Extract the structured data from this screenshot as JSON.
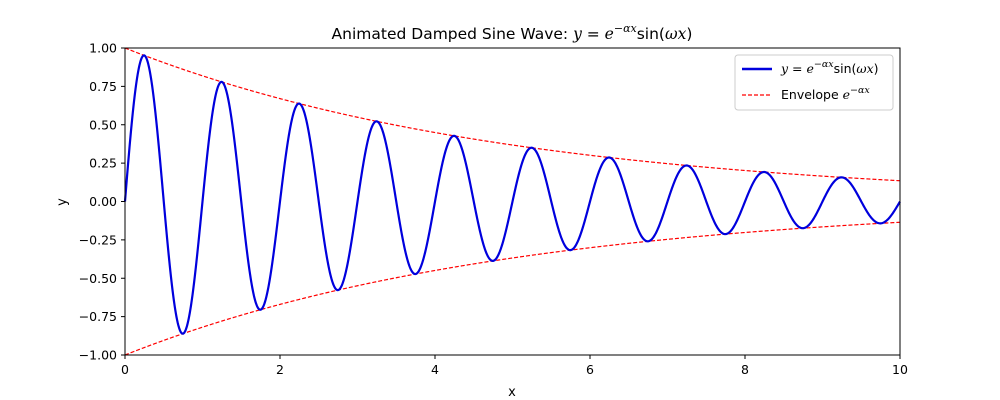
{
  "chart_data": {
    "type": "line",
    "title_prefix": "Animated Damped Sine Wave: ",
    "title_math": "y = e^(−αx) sin(ωx)",
    "xlabel": "x",
    "ylabel": "y",
    "xlim": [
      0,
      10
    ],
    "ylim": [
      -1.0,
      1.0
    ],
    "x_ticks": [
      0,
      2,
      4,
      6,
      8,
      10
    ],
    "x_tick_labels": [
      "0",
      "2",
      "4",
      "6",
      "8",
      "10"
    ],
    "y_ticks": [
      1.0,
      0.75,
      0.5,
      0.25,
      0.0,
      -0.25,
      -0.5,
      -0.75,
      -1.0
    ],
    "y_tick_labels": [
      "1.00",
      "0.75",
      "0.50",
      "0.25",
      "0.00",
      "−0.25",
      "−0.50",
      "−0.75",
      "−1.00"
    ],
    "grid": false,
    "legend_position": "top-right",
    "alpha": 0.2,
    "omega": 6.283,
    "series": [
      {
        "name": "y = e^(−αx) sin(ωx)",
        "style": "solid",
        "color": "#0000dd",
        "x": [
          0,
          0.25,
          0.75,
          1.25,
          1.75,
          2.25,
          2.75,
          3.25,
          3.75,
          4.25,
          4.75,
          5.25,
          5.75,
          6.25,
          6.75,
          7.25,
          7.75,
          8.25,
          8.75,
          9.25,
          9.75,
          10
        ],
        "y": [
          0,
          0.95,
          -0.86,
          0.78,
          -0.7,
          0.64,
          -0.58,
          0.52,
          -0.47,
          0.43,
          -0.39,
          0.35,
          -0.32,
          0.29,
          -0.26,
          0.23,
          -0.21,
          0.19,
          -0.17,
          0.16,
          -0.14,
          0
        ]
      },
      {
        "name": "Envelope e^(−αx)",
        "style": "dashed",
        "color": "#ff0000",
        "x": [
          0,
          2,
          4,
          6,
          8,
          10
        ],
        "y": [
          1.0,
          0.67,
          0.45,
          0.3,
          0.2,
          0.135
        ]
      },
      {
        "name": "",
        "style": "dashed",
        "color": "#ff0000",
        "x": [
          0,
          2,
          4,
          6,
          8,
          10
        ],
        "y": [
          -1.0,
          -0.67,
          -0.45,
          -0.3,
          -0.2,
          -0.135
        ]
      }
    ],
    "legend": [
      {
        "label_plain": "y = e^(−αx) sin(ωx)",
        "style": "solid",
        "color": "#0000dd"
      },
      {
        "label_plain": "Envelope e^(−αx)",
        "style": "dashed",
        "color": "#ff0000"
      }
    ]
  }
}
